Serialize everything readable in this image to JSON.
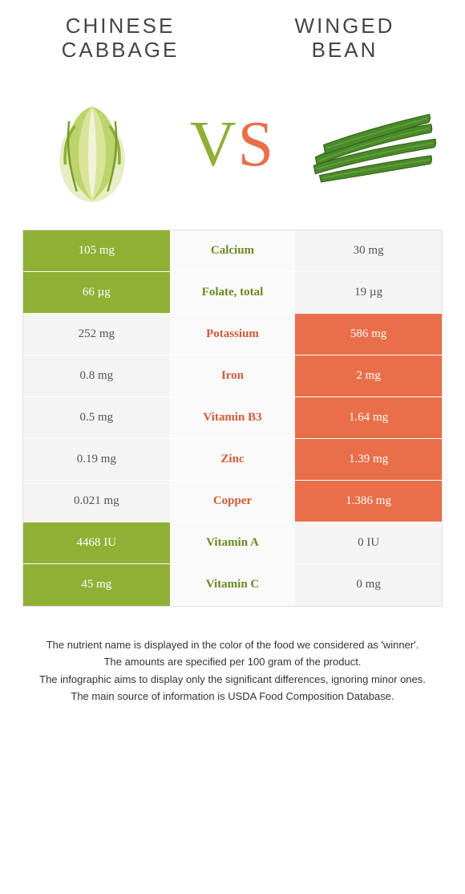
{
  "colors": {
    "left": "#8fb035",
    "right": "#e86f4a",
    "neutral_bg": "#f4f4f4",
    "neutral_text": "#555555",
    "mid_bg": "#fafafa",
    "border": "#e0e0e0",
    "title_text": "#454545"
  },
  "left_food": {
    "title": "Chinese cabbage"
  },
  "right_food": {
    "title": "Winged bean"
  },
  "vs": {
    "v": "V",
    "s": "S"
  },
  "rows": [
    {
      "nutrient": "Calcium",
      "left": "105 mg",
      "right": "30 mg",
      "winner": "left"
    },
    {
      "nutrient": "Folate, total",
      "left": "66 µg",
      "right": "19 µg",
      "winner": "left"
    },
    {
      "nutrient": "Potassium",
      "left": "252 mg",
      "right": "586 mg",
      "winner": "right"
    },
    {
      "nutrient": "Iron",
      "left": "0.8 mg",
      "right": "2 mg",
      "winner": "right"
    },
    {
      "nutrient": "Vitamin B3",
      "left": "0.5 mg",
      "right": "1.64 mg",
      "winner": "right"
    },
    {
      "nutrient": "Zinc",
      "left": "0.19 mg",
      "right": "1.39 mg",
      "winner": "right"
    },
    {
      "nutrient": "Copper",
      "left": "0.021 mg",
      "right": "1.386 mg",
      "winner": "right"
    },
    {
      "nutrient": "Vitamin A",
      "left": "4468 IU",
      "right": "0 IU",
      "winner": "left"
    },
    {
      "nutrient": "Vitamin C",
      "left": "45 mg",
      "right": "0 mg",
      "winner": "left"
    }
  ],
  "footnotes": [
    "The nutrient name is displayed in the color of the food we considered as 'winner'.",
    "The amounts are specified per 100 gram of the product.",
    "The infographic aims to display only the significant differences, ignoring minor ones.",
    "The main source of information is USDA Food Composition Database."
  ]
}
